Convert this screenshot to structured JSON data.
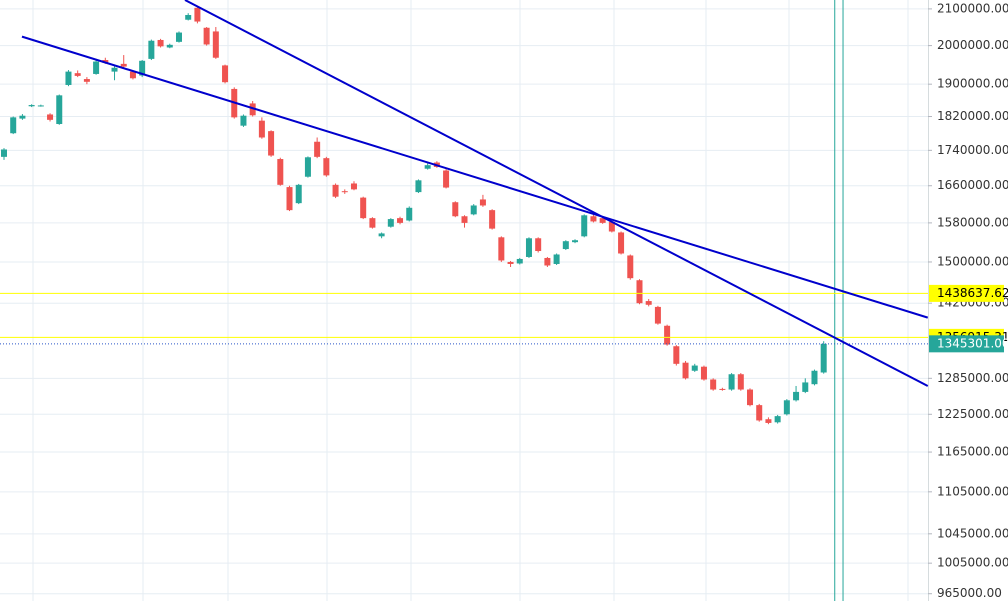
{
  "chart_data": {
    "type": "candlestick",
    "log_scale": true,
    "grid": true,
    "up_color": "#26a69a",
    "down_color": "#ef5350",
    "ylim": [
      955700,
      2125000
    ],
    "yticks": [
      {
        "value": 2100000,
        "label": "2100000.00"
      },
      {
        "value": 2000000,
        "label": "2000000.00"
      },
      {
        "value": 1900000,
        "label": "1900000.00"
      },
      {
        "value": 1820000,
        "label": "1820000.00"
      },
      {
        "value": 1740000,
        "label": "1740000.00"
      },
      {
        "value": 1660000,
        "label": "1660000.00"
      },
      {
        "value": 1580000,
        "label": "1580000.00"
      },
      {
        "value": 1500000,
        "label": "1500000.00"
      },
      {
        "value": 1420000,
        "label": "1420000.00"
      },
      {
        "value": 1285000,
        "label": "1285000.00"
      },
      {
        "value": 1225000,
        "label": "1225000.00"
      },
      {
        "value": 1165000,
        "label": "1165000.00"
      },
      {
        "value": 1105000,
        "label": "1105000.00"
      },
      {
        "value": 1045000,
        "label": "1045000.00"
      },
      {
        "value": 1005000,
        "label": "1005000.00"
      },
      {
        "value": 965000,
        "label": "965000.00"
      }
    ],
    "open": [
      1725000,
      1780000,
      1815000,
      1845000,
      1846000,
      1825000,
      1802000,
      1898000,
      1928000,
      1913000,
      1926000,
      1962000,
      1932000,
      1952000,
      1932000,
      1922000,
      1965000,
      2015000,
      1995000,
      2010000,
      2070000,
      2103000,
      2048000,
      2038000,
      1948000,
      1888000,
      1798000,
      1852000,
      1810000,
      1785000,
      1720000,
      1657000,
      1622000,
      1680000,
      1760000,
      1722000,
      1662000,
      1648000,
      1665000,
      1634000,
      1590000,
      1552000,
      1572000,
      1590000,
      1585000,
      1646000,
      1698000,
      1712000,
      1694000,
      1624000,
      1594000,
      1598000,
      1630000,
      1607000,
      1550000,
      1500000,
      1497000,
      1510000,
      1548000,
      1508000,
      1496000,
      1526000,
      1540000,
      1552000,
      1594000,
      1590000,
      1582000,
      1560000,
      1513000,
      1464000,
      1424000,
      1413000,
      1378000,
      1341000,
      1312000,
      1298000,
      1305000,
      1283000,
      1267000,
      1266000,
      1292000,
      1266000,
      1240000,
      1217000,
      1212000,
      1225000,
      1248000,
      1262000,
      1275000,
      1295000
    ],
    "high": [
      1745000,
      1820000,
      1826000,
      1850000,
      1849000,
      1828000,
      1874000,
      1936000,
      1935000,
      1918000,
      1965000,
      1968000,
      1948000,
      1975000,
      1935000,
      1962000,
      2016000,
      2018000,
      2005000,
      2038000,
      2088000,
      2105000,
      2050000,
      2050000,
      1950000,
      1892000,
      1825000,
      1858000,
      1818000,
      1787000,
      1723000,
      1660000,
      1664000,
      1726000,
      1770000,
      1725000,
      1665000,
      1652000,
      1670000,
      1636000,
      1592000,
      1560000,
      1590000,
      1593000,
      1615000,
      1674000,
      1710000,
      1715000,
      1697000,
      1626000,
      1596000,
      1620000,
      1640000,
      1609000,
      1552000,
      1502000,
      1508000,
      1550000,
      1550000,
      1510000,
      1517000,
      1544000,
      1546000,
      1598000,
      1597000,
      1593000,
      1584000,
      1562000,
      1515000,
      1466000,
      1428000,
      1415000,
      1380000,
      1343000,
      1315000,
      1310000,
      1307000,
      1285000,
      1269000,
      1294000,
      1294000,
      1268000,
      1242000,
      1220000,
      1224000,
      1250000,
      1272000,
      1285000,
      1300000,
      1350000
    ],
    "low": [
      1718000,
      1778000,
      1812000,
      1843000,
      1844000,
      1808000,
      1800000,
      1895000,
      1918000,
      1900000,
      1924000,
      1952000,
      1910000,
      1940000,
      1912000,
      1918000,
      1962000,
      1995000,
      1993000,
      2008000,
      2068000,
      2060000,
      2000000,
      1965000,
      1902000,
      1815000,
      1795000,
      1820000,
      1767000,
      1725000,
      1660000,
      1605000,
      1620000,
      1678000,
      1722000,
      1680000,
      1633000,
      1642000,
      1650000,
      1588000,
      1568000,
      1548000,
      1570000,
      1577000,
      1583000,
      1644000,
      1696000,
      1700000,
      1654000,
      1592000,
      1570000,
      1596000,
      1614000,
      1566000,
      1500000,
      1490000,
      1495000,
      1508000,
      1519000,
      1490000,
      1494000,
      1524000,
      1538000,
      1550000,
      1581000,
      1578000,
      1560000,
      1515000,
      1465000,
      1418000,
      1414000,
      1380000,
      1342000,
      1307000,
      1283000,
      1296000,
      1281000,
      1264000,
      1264000,
      1264000,
      1264000,
      1238000,
      1213000,
      1209000,
      1210000,
      1223000,
      1246000,
      1260000,
      1273000,
      1293000
    ],
    "close": [
      1742000,
      1818000,
      1822000,
      1848000,
      1847000,
      1812000,
      1872000,
      1932000,
      1921000,
      1906000,
      1958000,
      1955000,
      1942000,
      1945000,
      1915000,
      1960000,
      2013000,
      1998000,
      2002000,
      2035000,
      2083000,
      2065000,
      2003000,
      1968000,
      1905000,
      1818000,
      1822000,
      1823000,
      1770000,
      1728000,
      1662000,
      1607000,
      1662000,
      1724000,
      1725000,
      1683000,
      1636000,
      1646000,
      1652000,
      1590000,
      1570000,
      1558000,
      1588000,
      1580000,
      1612000,
      1672000,
      1706000,
      1702000,
      1656000,
      1594000,
      1580000,
      1617000,
      1617000,
      1568000,
      1503000,
      1496000,
      1506000,
      1548000,
      1522000,
      1493000,
      1515000,
      1542000,
      1544000,
      1596000,
      1583000,
      1580000,
      1562000,
      1517000,
      1468000,
      1420000,
      1417000,
      1382000,
      1344000,
      1310000,
      1285000,
      1307000,
      1283000,
      1266000,
      1266000,
      1292000,
      1266000,
      1240000,
      1215000,
      1211000,
      1222000,
      1248000,
      1262000,
      1278000,
      1298000,
      1345301
    ],
    "trend_lines": [
      {
        "color": "#0000cc",
        "x": [
          1.95,
          100.3
        ],
        "y": [
          2024000,
          1393000
        ]
      },
      {
        "color": "#0000cc",
        "x": [
          19.65,
          100.3
        ],
        "y": [
          2125000,
          1272000
        ]
      }
    ],
    "price_lines": [
      {
        "value": 1438637.62,
        "label": "1438637.62",
        "color": "#ffff00",
        "text_color": "#000000",
        "style": "solid"
      },
      {
        "value": 1356915.31,
        "label": "1356915.31",
        "color": "#ffff00",
        "text_color": "#000000",
        "style": "solid"
      },
      {
        "value": 1345301.0,
        "label": "1345301.00",
        "color": "#26a69a",
        "text_color": "#ffffff",
        "style": "dotted"
      }
    ],
    "vertical_lines": [
      90.2,
      91.1
    ]
  }
}
